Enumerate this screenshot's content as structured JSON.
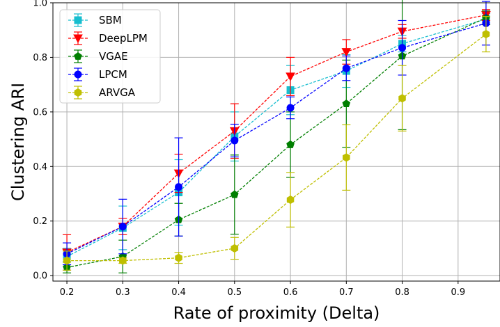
{
  "chart_data": {
    "type": "line",
    "title": "",
    "xlabel": "Rate of proximity (Delta)",
    "ylabel": "Clustering ARI",
    "xlim": [
      0.175,
      0.975
    ],
    "ylim": [
      -0.02,
      1.0
    ],
    "x_ticks": [
      "0.2",
      "0.3",
      "0.4",
      "0.5",
      "0.6",
      "0.7",
      "0.8",
      "0.9"
    ],
    "y_ticks": [
      "0.0",
      "0.2",
      "0.4",
      "0.6",
      "0.8",
      "1.0"
    ],
    "grid": true,
    "legend_position": "top-left",
    "x": [
      0.2,
      0.3,
      0.4,
      0.5,
      0.6,
      0.7,
      0.8,
      0.95
    ],
    "series": [
      {
        "name": "SBM",
        "color": "#17becf",
        "marker": "square",
        "values": [
          0.07,
          0.175,
          0.305,
          0.51,
          0.68,
          0.75,
          0.85,
          0.94
        ],
        "errors": [
          0.03,
          0.08,
          0.12,
          0.09,
          0.09,
          0.06,
          0.03,
          0.02
        ]
      },
      {
        "name": "DeepLPM",
        "color": "#ff0000",
        "marker": "triangle-down",
        "values": [
          0.085,
          0.18,
          0.375,
          0.53,
          0.73,
          0.82,
          0.895,
          0.955
        ],
        "errors": [
          0.065,
          0.03,
          0.07,
          0.1,
          0.07,
          0.045,
          0.025,
          0.02
        ]
      },
      {
        "name": "VGAE",
        "color": "#007f00",
        "marker": "pentagon",
        "values": [
          0.03,
          0.07,
          0.205,
          0.297,
          0.48,
          0.63,
          0.805,
          0.945
        ],
        "errors": [
          0.02,
          0.06,
          0.06,
          0.145,
          0.12,
          0.16,
          0.27,
          0.025
        ]
      },
      {
        "name": "LPCM",
        "color": "#0000ff",
        "marker": "circle",
        "values": [
          0.08,
          0.18,
          0.325,
          0.495,
          0.615,
          0.76,
          0.835,
          0.925
        ],
        "errors": [
          0.04,
          0.1,
          0.18,
          0.06,
          0.04,
          0.045,
          0.1,
          0.08
        ]
      },
      {
        "name": "ARVGA",
        "color": "#bfbf00",
        "marker": "hexagon",
        "values": [
          0.055,
          0.055,
          0.065,
          0.1,
          0.278,
          0.433,
          0.65,
          0.885
        ],
        "errors": [
          0.035,
          0.01,
          0.02,
          0.04,
          0.1,
          0.12,
          0.12,
          0.065
        ]
      }
    ]
  }
}
